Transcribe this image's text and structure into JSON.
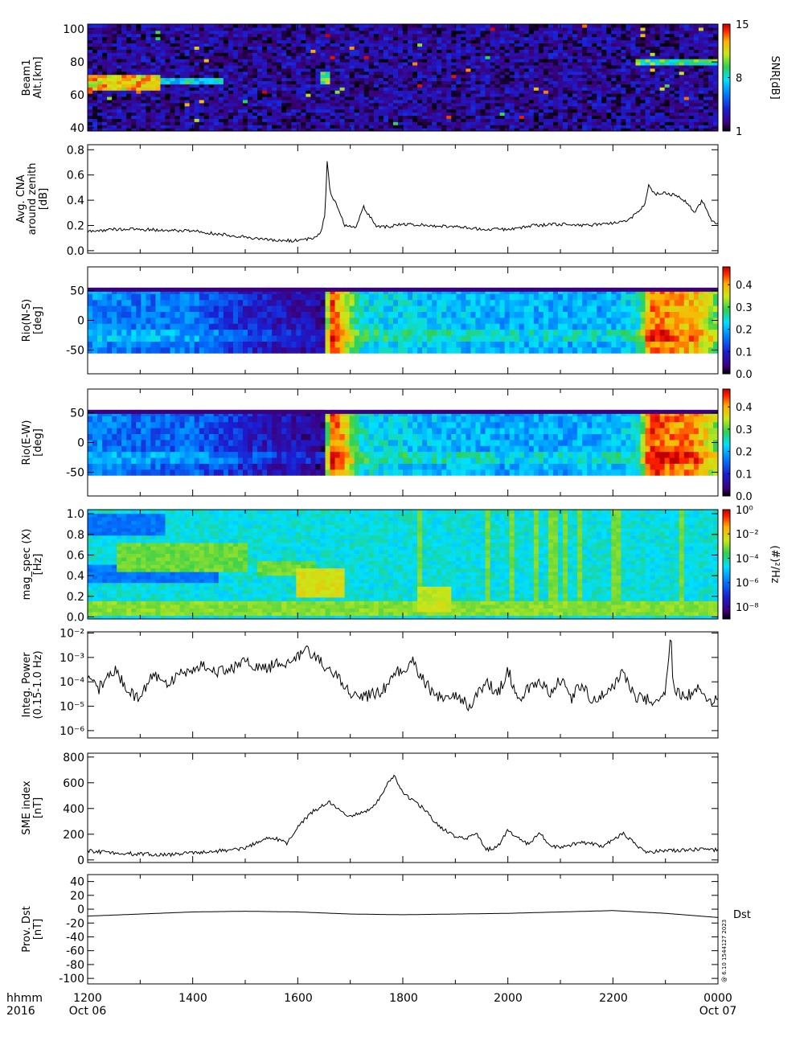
{
  "footer": {
    "row1": [
      "hhmm",
      "1200",
      "1400",
      "1600",
      "1800",
      "2000",
      "2200",
      "0000"
    ],
    "row2": [
      "2016",
      "Oct 06",
      "Oct 07"
    ],
    "side_note": "@ 6.10 1544127 2023",
    "dst_tag": "Dst"
  },
  "chart_data": [
    {
      "panel": "beam1",
      "type": "heatmap",
      "ylabel": [
        "Beam1",
        "Alt.[km]"
      ],
      "x": {
        "start": "1200",
        "end": "0000",
        "unit": "hhmm"
      },
      "ylim": [
        38,
        103
      ],
      "yticks": [
        "40",
        "60",
        "80",
        "100"
      ],
      "colorbar": {
        "label": "SNR[dB]",
        "ticks": [
          "1",
          "8",
          "15"
        ],
        "range": [
          1,
          15
        ],
        "scale": "linear"
      },
      "features": [
        {
          "t": [
            12.0,
            13.4
          ],
          "alt": [
            63,
            73
          ],
          "snr": 12
        },
        {
          "t": [
            13.4,
            14.6
          ],
          "alt": [
            66,
            70
          ],
          "snr": 8
        },
        {
          "t": [
            16.4,
            16.6
          ],
          "alt": [
            66,
            74
          ],
          "snr": 10
        },
        {
          "t": [
            22.4,
            24.0
          ],
          "alt": [
            78,
            82
          ],
          "snr": 9
        }
      ]
    },
    {
      "panel": "cna",
      "type": "line",
      "ylabel": [
        "Avg. CNA",
        "around zenith",
        "[dB]"
      ],
      "ylim": [
        -0.02,
        0.84
      ],
      "yticks": [
        "0.0",
        "0.2",
        "0.4",
        "0.6",
        "0.8"
      ],
      "x": [
        12.0,
        12.5,
        13.0,
        13.5,
        14.0,
        14.5,
        15.0,
        15.5,
        16.0,
        16.3,
        16.45,
        16.52,
        16.56,
        16.62,
        16.7,
        16.9,
        17.1,
        17.25,
        17.5,
        17.75,
        18.0,
        18.5,
        19.0,
        19.5,
        20.0,
        20.5,
        21.0,
        21.5,
        22.0,
        22.3,
        22.6,
        22.68,
        22.8,
        23.0,
        23.3,
        23.45,
        23.55,
        23.7,
        23.85,
        24.0
      ],
      "values": [
        0.15,
        0.17,
        0.17,
        0.16,
        0.16,
        0.13,
        0.11,
        0.08,
        0.08,
        0.1,
        0.15,
        0.3,
        0.72,
        0.45,
        0.4,
        0.2,
        0.18,
        0.35,
        0.19,
        0.19,
        0.21,
        0.2,
        0.19,
        0.17,
        0.17,
        0.2,
        0.21,
        0.2,
        0.22,
        0.24,
        0.36,
        0.52,
        0.45,
        0.46,
        0.42,
        0.36,
        0.3,
        0.4,
        0.25,
        0.21
      ]
    },
    {
      "panel": "rio_ns",
      "type": "heatmap",
      "ylabel": [
        "Rio(N-S)",
        "[deg]"
      ],
      "ylim": [
        -90,
        90
      ],
      "yticks": [
        "50",
        "0",
        "-50"
      ],
      "y_extent": [
        -55,
        55
      ],
      "colorbar": {
        "ticks": [
          "0.0",
          "0.1",
          "0.2",
          "0.3",
          "0.4"
        ],
        "range": [
          0.0,
          0.48
        ],
        "scale": "linear"
      },
      "time_profile": {
        "x": [
          12.0,
          13.0,
          14.0,
          15.0,
          15.5,
          16.5,
          16.6,
          16.8,
          17.2,
          18.0,
          20.0,
          22.0,
          22.5,
          22.7,
          23.6,
          24.0
        ],
        "values": [
          0.18,
          0.16,
          0.16,
          0.1,
          0.08,
          0.06,
          0.45,
          0.4,
          0.24,
          0.22,
          0.2,
          0.2,
          0.24,
          0.42,
          0.38,
          0.3
        ]
      }
    },
    {
      "panel": "rio_ew",
      "type": "heatmap",
      "ylabel": [
        "Rio(E-W)",
        "[deg]"
      ],
      "ylim": [
        -90,
        90
      ],
      "yticks": [
        "50",
        "0",
        "-50"
      ],
      "y_extent": [
        -55,
        55
      ],
      "colorbar": {
        "ticks": [
          "0.0",
          "0.1",
          "0.2",
          "0.3",
          "0.4"
        ],
        "range": [
          0.0,
          0.48
        ],
        "scale": "linear"
      },
      "time_profile": {
        "x": [
          12.0,
          13.0,
          14.0,
          15.0,
          15.5,
          16.5,
          16.6,
          16.8,
          17.2,
          18.0,
          20.0,
          22.0,
          22.5,
          22.7,
          23.6,
          24.0
        ],
        "values": [
          0.17,
          0.15,
          0.15,
          0.1,
          0.08,
          0.05,
          0.45,
          0.42,
          0.24,
          0.22,
          0.19,
          0.2,
          0.24,
          0.44,
          0.4,
          0.32
        ]
      }
    },
    {
      "panel": "mag_spec",
      "type": "heatmap",
      "ylabel": [
        "mag_spec (X)",
        "[Hz]"
      ],
      "ylim": [
        -0.02,
        1.04
      ],
      "yticks": [
        "0.0",
        "0.2",
        "0.4",
        "0.6",
        "0.8",
        "1.0"
      ],
      "colorbar": {
        "label": "(#)²/Hz",
        "ticks": [
          "10⁰",
          "10⁻²",
          "10⁻⁴",
          "10⁻⁶",
          "10⁻⁸"
        ],
        "range": [
          -9,
          0
        ],
        "scale": "log10"
      },
      "background_log10": -4.5,
      "features": [
        {
          "t": [
            12.0,
            24.0
          ],
          "f": [
            0.0,
            0.15
          ],
          "log10": -3
        },
        {
          "t": [
            12.0,
            24.0
          ],
          "f": [
            0.0,
            0.03
          ],
          "log10": -1.5
        },
        {
          "t": [
            12.0,
            14.5
          ],
          "f": [
            0.35,
            0.5
          ],
          "log10": -6
        },
        {
          "t": [
            12.0,
            13.5
          ],
          "f": [
            0.8,
            1.0
          ],
          "log10": -6
        },
        {
          "t": [
            12.6,
            15.0
          ],
          "f": [
            0.45,
            0.72
          ],
          "log10": -3.2
        },
        {
          "t": [
            15.2,
            16.3
          ],
          "f": [
            0.4,
            0.55
          ],
          "log10": -3.2
        },
        {
          "t": [
            16.0,
            16.9
          ],
          "f": [
            0.2,
            0.48
          ],
          "log10": -2.3
        },
        {
          "t": [
            18.3,
            18.9
          ],
          "f": [
            0.05,
            0.3
          ],
          "log10": -2.5
        }
      ],
      "spikes_hours": [
        18.35,
        19.6,
        20.1,
        20.55,
        20.85,
        21.1,
        21.35,
        22.05,
        23.3
      ]
    },
    {
      "panel": "integ_power",
      "type": "line",
      "ylabel": [
        "Integ. Power",
        "(0.15-1.0 Hz)"
      ],
      "yscale": "log",
      "ylim": [
        -6.3,
        -1.95
      ],
      "yticks": [
        "10⁻²",
        "10⁻³",
        "10⁻⁴",
        "10⁻⁵",
        "10⁻⁶"
      ],
      "x": [
        12.0,
        12.2,
        12.5,
        12.8,
        13.0,
        13.2,
        13.5,
        13.8,
        14.0,
        14.2,
        14.5,
        14.8,
        15.0,
        15.3,
        15.6,
        15.9,
        16.2,
        16.5,
        16.8,
        17.0,
        17.3,
        17.6,
        17.9,
        18.2,
        18.4,
        18.6,
        18.8,
        19.0,
        19.3,
        19.6,
        19.8,
        20.0,
        20.2,
        20.4,
        20.6,
        20.8,
        21.0,
        21.2,
        21.4,
        21.6,
        21.8,
        22.0,
        22.2,
        22.4,
        22.6,
        22.8,
        23.0,
        23.1,
        23.15,
        23.2,
        23.4,
        23.6,
        23.8,
        24.0
      ],
      "log10": [
        -3.9,
        -4.3,
        -3.5,
        -4.4,
        -4.7,
        -3.7,
        -4.1,
        -3.6,
        -3.5,
        -3.3,
        -3.6,
        -3.4,
        -3.2,
        -3.5,
        -3.3,
        -3.1,
        -2.7,
        -3.3,
        -3.9,
        -4.5,
        -4.6,
        -4.4,
        -3.6,
        -3.2,
        -4.0,
        -4.5,
        -4.8,
        -4.6,
        -5.0,
        -3.9,
        -4.6,
        -3.5,
        -4.7,
        -4.3,
        -3.9,
        -4.5,
        -3.9,
        -4.7,
        -4.1,
        -4.8,
        -4.5,
        -4.3,
        -3.6,
        -4.6,
        -4.7,
        -4.8,
        -4.5,
        -2.0,
        -4.2,
        -4.4,
        -4.6,
        -4.3,
        -4.7,
        -4.8
      ]
    },
    {
      "panel": "sme",
      "type": "line",
      "ylabel": [
        "SME index",
        "[nT]"
      ],
      "ylim": [
        -20,
        830
      ],
      "yticks": [
        "0",
        "200",
        "400",
        "600",
        "800"
      ],
      "x": [
        12.0,
        12.5,
        13.0,
        13.5,
        14.0,
        14.5,
        15.0,
        15.3,
        15.5,
        15.8,
        16.0,
        16.3,
        16.6,
        16.8,
        17.0,
        17.2,
        17.4,
        17.6,
        17.75,
        17.85,
        18.0,
        18.2,
        18.4,
        18.6,
        18.8,
        19.0,
        19.2,
        19.4,
        19.6,
        19.8,
        20.0,
        20.2,
        20.4,
        20.6,
        20.8,
        21.0,
        21.4,
        21.8,
        22.0,
        22.2,
        22.4,
        22.6,
        23.0,
        23.5,
        24.0
      ],
      "values": [
        70,
        55,
        45,
        40,
        55,
        70,
        90,
        150,
        180,
        130,
        260,
        380,
        450,
        390,
        340,
        360,
        400,
        500,
        620,
        650,
        520,
        460,
        400,
        300,
        230,
        180,
        160,
        210,
        80,
        100,
        230,
        170,
        120,
        210,
        120,
        90,
        140,
        110,
        150,
        210,
        130,
        60,
        70,
        80,
        80
      ]
    },
    {
      "panel": "dst",
      "type": "line",
      "ylabel": [
        "Prov. Dst",
        "[nT]"
      ],
      "ylim": [
        -108,
        50
      ],
      "yticks": [
        "40",
        "20",
        "0",
        "-20",
        "-40",
        "-60",
        "-80",
        "-100"
      ],
      "x": [
        12.0,
        13.0,
        14.0,
        15.0,
        16.0,
        17.0,
        18.0,
        19.0,
        20.0,
        21.0,
        22.0,
        23.0,
        24.0
      ],
      "values": [
        -10,
        -7,
        -4,
        -3,
        -4,
        -7,
        -8,
        -7,
        -6,
        -4,
        -2,
        -6,
        -12
      ]
    }
  ]
}
